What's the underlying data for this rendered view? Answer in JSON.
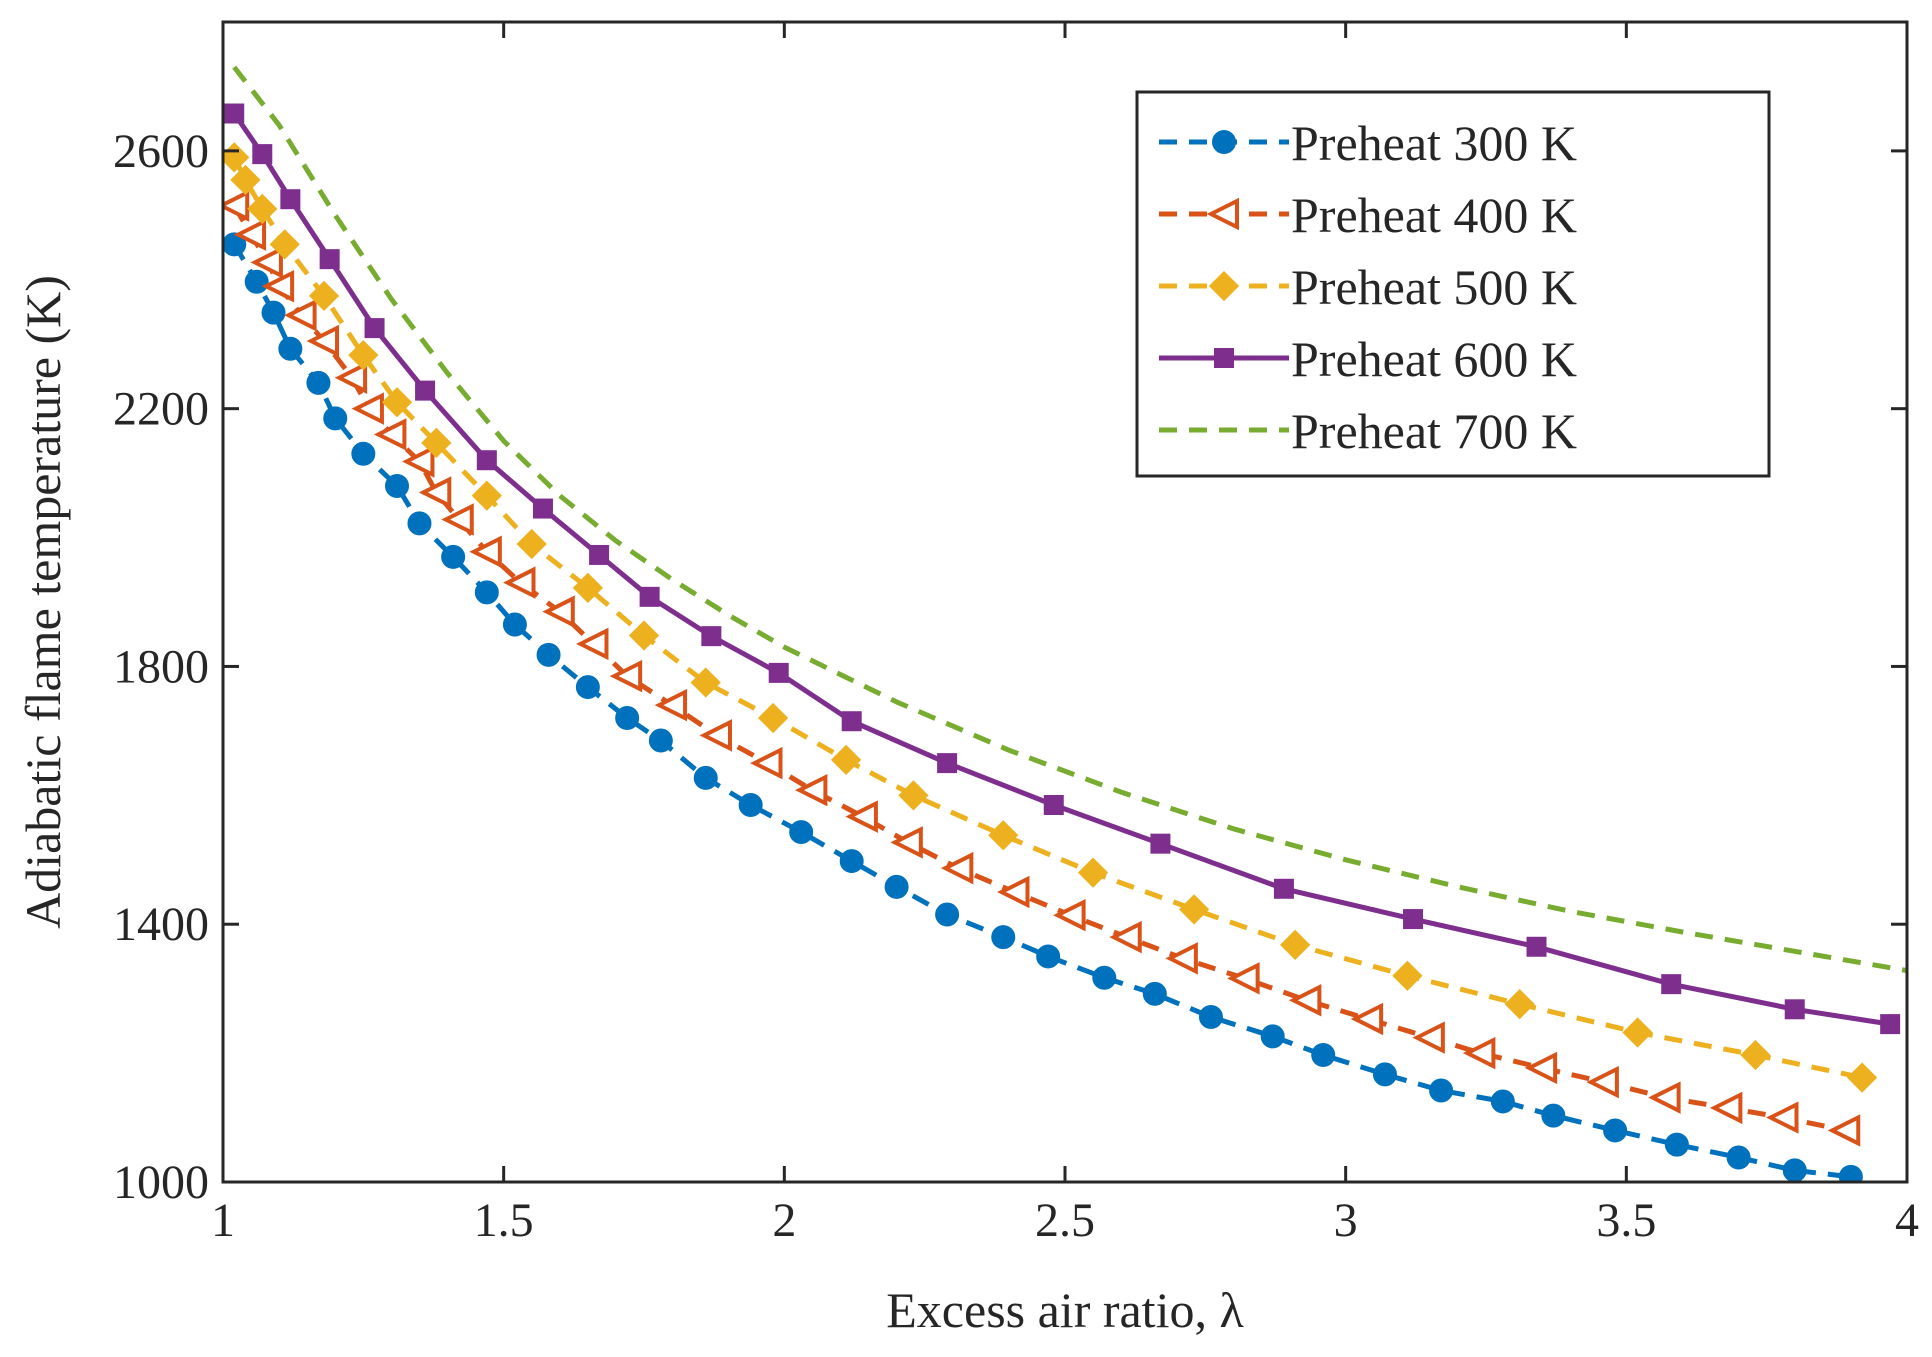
{
  "chart_data": {
    "type": "line",
    "title": "",
    "xlabel": "Excess air ratio, λ",
    "ylabel": "Adiabatic flame temperature (K)",
    "xlim": [
      1,
      4
    ],
    "ylim": [
      1000,
      2800
    ],
    "xticks": [
      1,
      1.5,
      2,
      2.5,
      3,
      3.5,
      4
    ],
    "xtick_labels": [
      "1",
      "1.5",
      "2",
      "2.5",
      "3",
      "3.5",
      "4"
    ],
    "yticks": [
      1000,
      1400,
      1800,
      2200,
      2600
    ],
    "ytick_labels": [
      "1000",
      "1400",
      "1800",
      "2200",
      "2600"
    ],
    "grid": false,
    "legend_position": "top-right",
    "series": [
      {
        "name": "Preheat 300 K",
        "color": "#0072BD",
        "line_style": "dashed",
        "marker": "circle",
        "x": [
          1.02,
          1.06,
          1.09,
          1.12,
          1.17,
          1.2,
          1.25,
          1.31,
          1.35,
          1.41,
          1.47,
          1.52,
          1.58,
          1.65,
          1.72,
          1.78,
          1.86,
          1.94,
          2.03,
          2.12,
          2.2,
          2.29,
          2.39,
          2.47,
          2.57,
          2.66,
          2.76,
          2.87,
          2.96,
          3.07,
          3.17,
          3.28,
          3.37,
          3.48,
          3.59,
          3.7,
          3.8,
          3.9
        ],
        "y": [
          2455,
          2397,
          2349,
          2293,
          2240,
          2185,
          2130,
          2080,
          2022,
          1970,
          1915,
          1865,
          1818,
          1768,
          1720,
          1685,
          1627,
          1585,
          1543,
          1498,
          1458,
          1415,
          1380,
          1350,
          1317,
          1292,
          1256,
          1226,
          1197,
          1167,
          1142,
          1125,
          1103,
          1080,
          1058,
          1038,
          1018,
          1008
        ]
      },
      {
        "name": "Preheat 400 K",
        "color": "#D95319",
        "line_style": "dashed",
        "marker": "triangle-left",
        "x": [
          1.02,
          1.05,
          1.08,
          1.1,
          1.14,
          1.18,
          1.23,
          1.26,
          1.3,
          1.35,
          1.38,
          1.42,
          1.47,
          1.53,
          1.6,
          1.66,
          1.72,
          1.8,
          1.88,
          1.97,
          2.05,
          2.14,
          2.22,
          2.31,
          2.41,
          2.51,
          2.61,
          2.71,
          2.82,
          2.93,
          3.04,
          3.15,
          3.24,
          3.35,
          3.46,
          3.57,
          3.68,
          3.78,
          3.89
        ],
        "y": [
          2515,
          2470,
          2427,
          2390,
          2345,
          2305,
          2248,
          2200,
          2160,
          2118,
          2070,
          2028,
          1978,
          1930,
          1885,
          1835,
          1785,
          1740,
          1693,
          1650,
          1608,
          1567,
          1527,
          1487,
          1450,
          1414,
          1380,
          1347,
          1316,
          1282,
          1253,
          1224,
          1200,
          1177,
          1155,
          1131,
          1115,
          1100,
          1080
        ]
      },
      {
        "name": "Preheat 500 K",
        "color": "#EDB120",
        "line_style": "dashed",
        "marker": "diamond",
        "x": [
          1.02,
          1.04,
          1.07,
          1.11,
          1.18,
          1.25,
          1.31,
          1.38,
          1.47,
          1.55,
          1.65,
          1.75,
          1.86,
          1.98,
          2.11,
          2.23,
          2.39,
          2.55,
          2.73,
          2.91,
          3.11,
          3.31,
          3.52,
          3.73,
          3.92
        ],
        "y": [
          2590,
          2555,
          2510,
          2455,
          2375,
          2283,
          2210,
          2147,
          2065,
          1990,
          1922,
          1848,
          1775,
          1720,
          1655,
          1600,
          1538,
          1480,
          1423,
          1368,
          1320,
          1276,
          1232,
          1197,
          1162
        ]
      },
      {
        "name": "Preheat 600 K",
        "color": "#7E2F8E",
        "line_style": "solid",
        "marker": "square",
        "x": [
          1.02,
          1.07,
          1.12,
          1.19,
          1.27,
          1.36,
          1.47,
          1.57,
          1.67,
          1.76,
          1.87,
          1.99,
          2.12,
          2.29,
          2.48,
          2.67,
          2.89,
          3.12,
          3.34,
          3.58,
          3.8,
          3.97
        ],
        "y": [
          2658,
          2595,
          2525,
          2432,
          2325,
          2228,
          2120,
          2045,
          1973,
          1908,
          1847,
          1790,
          1715,
          1650,
          1585,
          1525,
          1455,
          1408,
          1365,
          1307,
          1268,
          1245
        ]
      },
      {
        "name": "Preheat 700 K",
        "color": "#77AC30",
        "line_style": "dashed",
        "marker": "none",
        "x": [
          1.02,
          1.1,
          1.2,
          1.3,
          1.4,
          1.5,
          1.6,
          1.7,
          1.8,
          1.9,
          2.0,
          2.2,
          2.4,
          2.6,
          2.8,
          3.0,
          3.2,
          3.4,
          3.6,
          3.8,
          4.0
        ],
        "y": [
          2730,
          2640,
          2500,
          2370,
          2255,
          2150,
          2065,
          1995,
          1935,
          1880,
          1830,
          1745,
          1670,
          1605,
          1548,
          1500,
          1458,
          1420,
          1388,
          1358,
          1328
        ]
      }
    ]
  }
}
